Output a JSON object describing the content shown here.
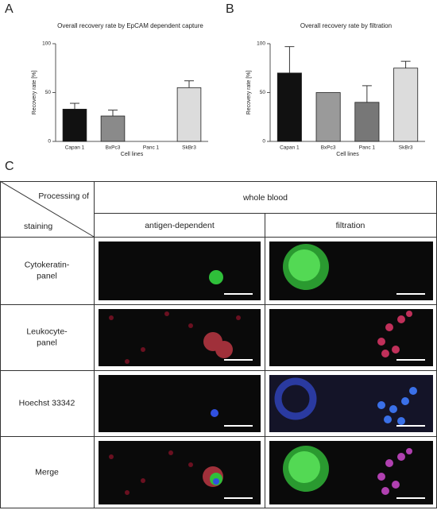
{
  "panel_labels": [
    "A",
    "B",
    "C"
  ],
  "chart_data": [
    {
      "type": "bar",
      "title": "Overall recovery rate by EpCAM dependent capture",
      "categories": [
        "Capan 1",
        "BxPc3",
        "Panc 1",
        "SkBr3"
      ],
      "values": [
        33,
        26,
        0,
        55
      ],
      "errors": [
        6,
        6,
        0,
        7
      ],
      "colors": [
        "#111111",
        "#8a8a8a",
        "#bbbbbb",
        "#dcdcdc"
      ],
      "ylim": [
        0,
        100
      ],
      "yticks": [
        0,
        50,
        100
      ],
      "y_label": "Recovery rate [%]",
      "x_label": "Cell lines"
    },
    {
      "type": "bar",
      "title": "Overall recovery rate by filtration",
      "categories": [
        "Capan 1",
        "BxPc3",
        "Panc 1",
        "SkBr3"
      ],
      "values": [
        70,
        50,
        40,
        75
      ],
      "errors": [
        27,
        0,
        17,
        7
      ],
      "colors": [
        "#111111",
        "#9a9a9a",
        "#777777",
        "#dcdcdc"
      ],
      "ylim": [
        0,
        100
      ],
      "yticks": [
        0,
        50,
        100
      ],
      "y_label": "Recovery rate [%]",
      "x_label": "Cell lines"
    }
  ],
  "table": {
    "corner": {
      "top": "Processing of",
      "bottom": "staining"
    },
    "group_header": "whole blood",
    "columns": [
      "antigen-dependent",
      "filtration"
    ],
    "rows": [
      [
        "Cytokeratin-",
        "panel"
      ],
      [
        "Leukocyte-",
        "panel"
      ],
      [
        "Hoechst 33342"
      ],
      [
        "Merge"
      ]
    ]
  }
}
